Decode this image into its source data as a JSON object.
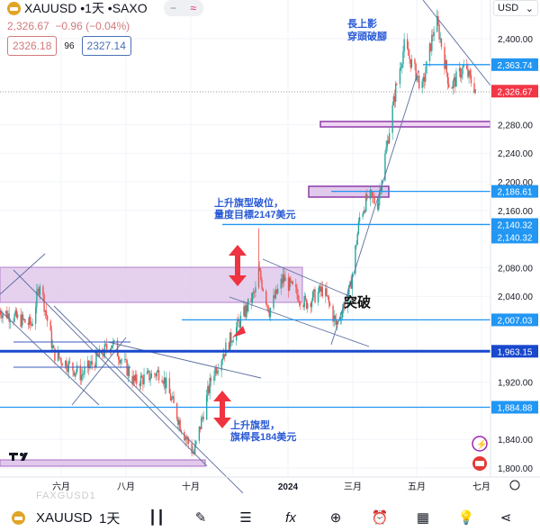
{
  "header": {
    "symbol": "XAUUSD",
    "interval": "1天",
    "source": "SAXO",
    "title": "XAUUSD •1天 •SAXO",
    "btn_minus": "−",
    "btn_wave": "≈",
    "last": "2,326.67",
    "change": "−0.96 (−0.04%)",
    "bid": "2326.18",
    "spread": "96",
    "ask": "2327.14"
  },
  "currency": "USD",
  "chart_data": {
    "type": "candlestick",
    "price_path": [
      [
        "2023-04-04",
        2020
      ],
      [
        "2023-05-04",
        2000
      ],
      [
        "2023-05-12",
        2060
      ],
      [
        "2023-05-25",
        1960
      ],
      [
        "2023-06-20",
        1930
      ],
      [
        "2023-07-19",
        1975
      ],
      [
        "2023-08-09",
        1920
      ],
      [
        "2023-09-03",
        1935
      ],
      [
        "2023-09-24",
        1850
      ],
      [
        "2023-10-04",
        1820
      ],
      [
        "2023-10-21",
        1930
      ],
      [
        "2023-11-11",
        1990
      ],
      [
        "2023-12-02",
        2050
      ],
      [
        "2023-12-04",
        2075
      ],
      [
        "2023-12-14",
        2020
      ],
      [
        "2023-12-27",
        2065
      ],
      [
        "2024-01-17",
        2030
      ],
      [
        "2024-02-03",
        2050
      ],
      [
        "2024-02-15",
        2000
      ],
      [
        "2024-02-28",
        2050
      ],
      [
        "2024-03-08",
        2150
      ],
      [
        "2024-03-16",
        2180
      ],
      [
        "2024-03-25",
        2170
      ],
      [
        "2024-04-11",
        2330
      ],
      [
        "2024-04-19",
        2390
      ],
      [
        "2024-05-06",
        2330
      ],
      [
        "2024-05-19",
        2430
      ],
      [
        "2024-06-01",
        2330
      ],
      [
        "2024-06-14",
        2360
      ],
      [
        "2024-06-26",
        2327
      ]
    ],
    "y_ticks": [
      "2,400.00",
      "2,280.00",
      "2,240.00",
      "2,200.00",
      "2,160.00",
      "2,080.00",
      "2,040.00",
      "1,920.00",
      "1,840.00",
      "1,800.00"
    ],
    "y_tick_values": [
      2400,
      2280,
      2240,
      2200,
      2160,
      2080,
      2040,
      1920,
      1840,
      1800
    ],
    "x_ticks": [
      "六月",
      "八月",
      "十月",
      "2024",
      "三月",
      "五月",
      "七月"
    ],
    "ylim": [
      1790,
      2450
    ],
    "levels": [
      {
        "label": "2,363.74",
        "value": 2363.74,
        "color": "#2196f3"
      },
      {
        "label": "2,326.67",
        "value": 2326.67,
        "color": "#f23645"
      },
      {
        "label": "2,186.61",
        "value": 2186.61,
        "color": "#2196f3"
      },
      {
        "label": "2,140.32",
        "value": 2140.32,
        "color": "#2196f3"
      },
      {
        "label": "2,140.32",
        "value": 2140.32,
        "color": "#2196f3"
      },
      {
        "label": "2,007.03",
        "value": 2007.03,
        "color": "#2196f3"
      },
      {
        "label": "1,963.15",
        "value": 1963.15,
        "color": "#1848cc"
      },
      {
        "label": "1,884.88",
        "value": 1884.88,
        "color": "#2196f3"
      }
    ],
    "up_color": "#26a69a",
    "down_color": "#ef5350"
  },
  "annotations": {
    "a1_l1": "長上影",
    "a1_l2": "穿頭破腳",
    "a2_l1": "上升旗型破位，",
    "a2_l2": "量度目標2147美元",
    "a3": "突破",
    "a4_l1": "上升旗型，",
    "a4_l2": "旗桿長184美元"
  },
  "ghost": "FAXGUSD1",
  "toolbar": {
    "symbol": "XAUUSD",
    "interval": "1天"
  }
}
